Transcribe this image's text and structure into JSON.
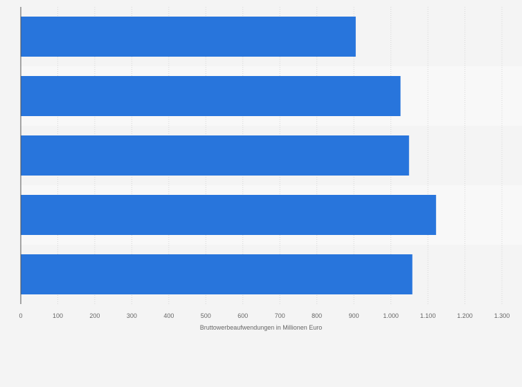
{
  "chart_data": {
    "type": "bar",
    "orientation": "horizontal",
    "xlabel": "Bruttowerbeaufwendungen in Millionen Euro",
    "ylabel": "",
    "xlim": [
      0,
      1300
    ],
    "x_ticks": [
      0,
      100,
      200,
      300,
      400,
      500,
      600,
      700,
      800,
      900,
      1000,
      1100,
      1200,
      1300
    ],
    "x_tick_labels": [
      "0",
      "100",
      "200",
      "300",
      "400",
      "500",
      "600",
      "700",
      "800",
      "900",
      "1.000",
      "1.100",
      "1.200",
      "1.300"
    ],
    "categories": [
      "",
      "",
      "",
      "",
      ""
    ],
    "values": [
      905,
      1026,
      1049,
      1122,
      1058
    ],
    "grid": true,
    "colors": {
      "bar": "#2875dc",
      "background": "#f4f4f4",
      "band_alt": "#f8f8f8",
      "grid": "#d6d6d6",
      "axis": "#555555",
      "text": "#666666"
    }
  }
}
